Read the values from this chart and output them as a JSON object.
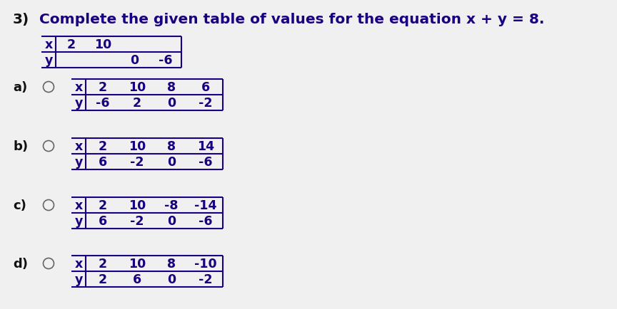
{
  "background_color": "#f0f0f0",
  "title_number": "3)",
  "title_text": "Complete the given table of values for the equation x + y = 8.",
  "title_number_color": "#222222",
  "title_text_color": "#1a0080",
  "title_fontsize": 14.5,
  "given_table": {
    "x_label": "x",
    "y_label": "y",
    "x_values": [
      "2",
      "10",
      "",
      ""
    ],
    "y_values": [
      "",
      "",
      "0",
      "-6"
    ]
  },
  "options": [
    {
      "label": "a)",
      "x_values": [
        "2",
        "10",
        "8",
        "6"
      ],
      "y_values": [
        "-6",
        "2",
        "0",
        "-2"
      ]
    },
    {
      "label": "b)",
      "x_values": [
        "2",
        "10",
        "8",
        "14"
      ],
      "y_values": [
        "6",
        "-2",
        "0",
        "-6"
      ]
    },
    {
      "label": "c)",
      "x_values": [
        "2",
        "10",
        "-8",
        "-14"
      ],
      "y_values": [
        "6",
        "-2",
        "0",
        "-6"
      ]
    },
    {
      "label": "d)",
      "x_values": [
        "2",
        "10",
        "8",
        "-10"
      ],
      "y_values": [
        "2",
        "6",
        "0",
        "-2"
      ]
    }
  ],
  "text_dark": "#1a0080",
  "black": "#111111",
  "radio_color": "#666666",
  "table_label_color": "#1a0080",
  "table_value_color": "#1a0080",
  "option_label_fontsize": 13,
  "table_fontsize": 12.5
}
